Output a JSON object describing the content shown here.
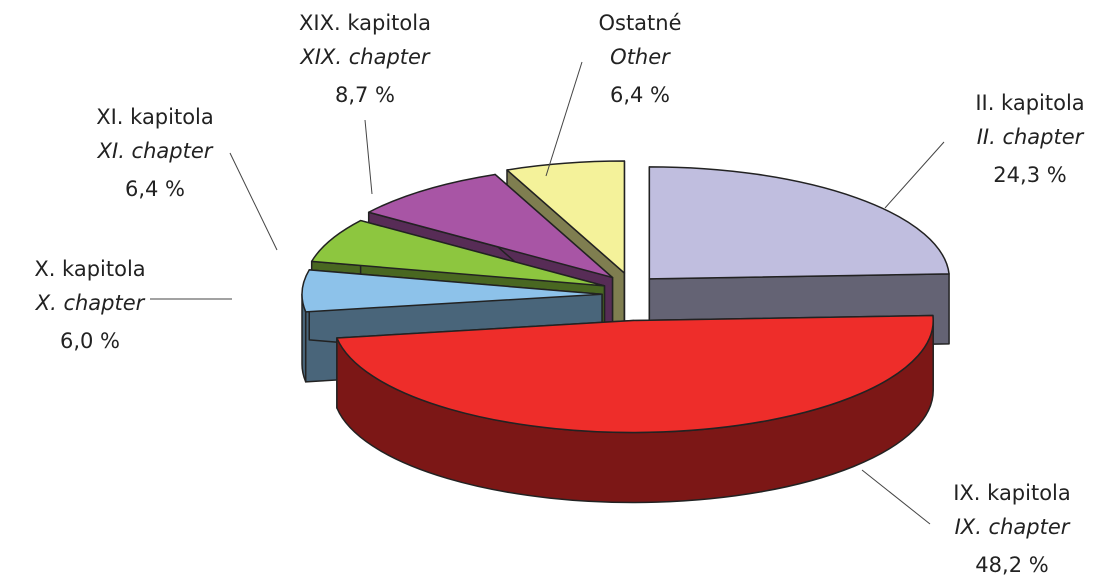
{
  "chart_data": {
    "type": "pie3d",
    "categories": [
      "II. kapitola",
      "IX. kapitola",
      "X. kapitola",
      "XI. kapitola",
      "XIX. kapitola",
      "Ostatné"
    ],
    "categories_en": [
      "II. chapter",
      "IX. chapter",
      "X. chapter",
      "XI. chapter",
      "XIX. chapter",
      "Other"
    ],
    "values": [
      24.3,
      48.2,
      6.0,
      6.4,
      8.7,
      6.4
    ],
    "value_labels": [
      "24,3 %",
      "48,2 %",
      "6,0 %",
      "6,4 %",
      "8,7 %",
      "6,4 %"
    ],
    "colors": [
      "#c0bedf",
      "#ee2d2a",
      "#8dc2ea",
      "#8dc63f",
      "#a855a5",
      "#f4f29a"
    ]
  }
}
